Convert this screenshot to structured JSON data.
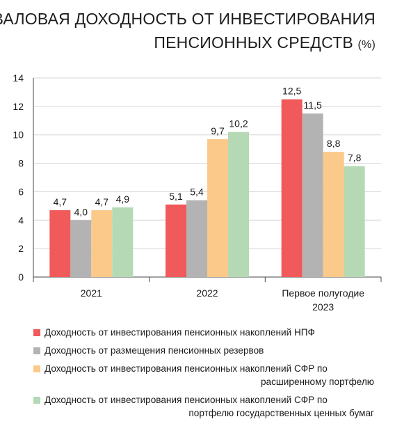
{
  "title": {
    "line1": "ВАЛОВАЯ ДОХОДНОСТЬ ОТ ИНВЕСТИРОВАНИЯ",
    "line2": "ПЕНСИОННЫХ СРЕДСТВ",
    "unit": "(%)"
  },
  "colors": {
    "npf": "#f05a5b",
    "reserves": "#b3b3b3",
    "sfr_extended": "#fbc98a",
    "sfr_gov": "#b5d9b5"
  },
  "chart_data": {
    "type": "bar",
    "categories": [
      "2021",
      "2022",
      "Первое полугодие 2023"
    ],
    "category_labels": [
      [
        "2021"
      ],
      [
        "2022"
      ],
      [
        "Первое полугодие",
        "2023"
      ]
    ],
    "ylim": [
      0,
      14
    ],
    "yticks": [
      0,
      2,
      4,
      6,
      8,
      10,
      12,
      14
    ],
    "grid": true,
    "legend_position": "bottom",
    "series": [
      {
        "name": "Доходность от инвестирования пенсионных накоплений НПФ",
        "color": "#f05a5b",
        "values": [
          4.7,
          5.1,
          12.5
        ],
        "labels": [
          "4,7",
          "5,1",
          "12,5"
        ]
      },
      {
        "name": "Доходность от размещения пенсионных резервов",
        "color": "#b3b3b3",
        "values": [
          4.0,
          5.4,
          11.5
        ],
        "labels": [
          "4,0",
          "5,4",
          "11,5"
        ]
      },
      {
        "name": "Доходность от инвестирования пенсионных накоплений СФР по расширенному портфелю",
        "color": "#fbc98a",
        "values": [
          4.7,
          9.7,
          8.8
        ],
        "labels": [
          "4,7",
          "9,7",
          "8,8"
        ]
      },
      {
        "name": "Доходность от инвестирования пенсионных накоплений СФР по портфелю государственных ценных бумаг",
        "color": "#b5d9b5",
        "values": [
          4.9,
          10.2,
          7.8
        ],
        "labels": [
          "4,9",
          "10,2",
          "7,8"
        ]
      }
    ]
  },
  "legend": [
    {
      "line1": "Доходность от инвестирования пенсионных накоплений НПФ",
      "line2": ""
    },
    {
      "line1": "Доходность от размещения пенсионных резервов",
      "line2": ""
    },
    {
      "line1": "Доходность от инвестирования пенсионных накоплений СФР по",
      "line2": "расширенному портфелю"
    },
    {
      "line1": "Доходность от инвестирования пенсионных накоплений СФР по",
      "line2": "портфелю государственных ценных бумаг"
    }
  ]
}
